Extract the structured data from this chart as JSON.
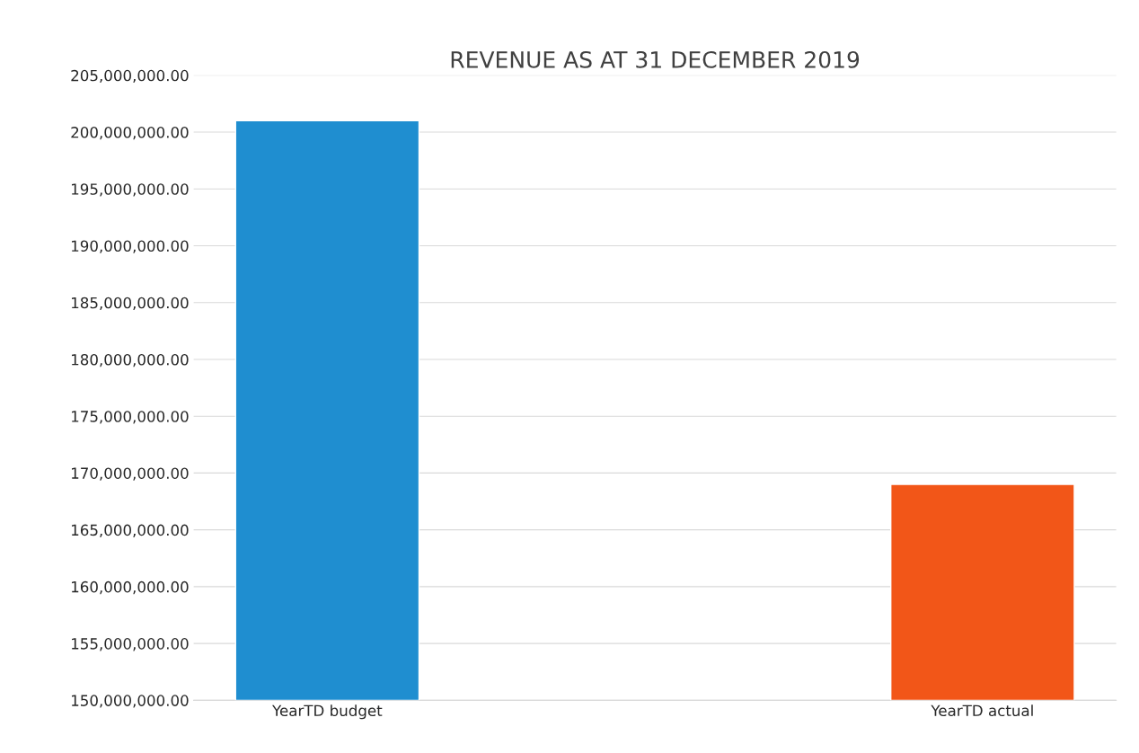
{
  "chart_data": {
    "type": "bar",
    "title": "REVENUE AS AT 31 DECEMBER 2019",
    "categories": [
      "YearTD budget",
      "YearTD actual"
    ],
    "values": [
      201000000,
      169000000
    ],
    "colors": [
      "#1f8ed0",
      "#f25618"
    ],
    "ylim": [
      150000000,
      205000000
    ],
    "yticks": [
      {
        "value": 150000000,
        "label": "150,000,000.00"
      },
      {
        "value": 155000000,
        "label": "155,000,000.00"
      },
      {
        "value": 160000000,
        "label": "160,000,000.00"
      },
      {
        "value": 165000000,
        "label": "165,000,000.00"
      },
      {
        "value": 170000000,
        "label": "170,000,000.00"
      },
      {
        "value": 175000000,
        "label": "175,000,000.00"
      },
      {
        "value": 180000000,
        "label": "180,000,000.00"
      },
      {
        "value": 185000000,
        "label": "185,000,000.00"
      },
      {
        "value": 190000000,
        "label": "190,000,000.00"
      },
      {
        "value": 195000000,
        "label": "195,000,000.00"
      },
      {
        "value": 200000000,
        "label": "200,000,000.00"
      },
      {
        "value": 205000000,
        "label": "205,000,000.00"
      }
    ],
    "grid": "y"
  }
}
